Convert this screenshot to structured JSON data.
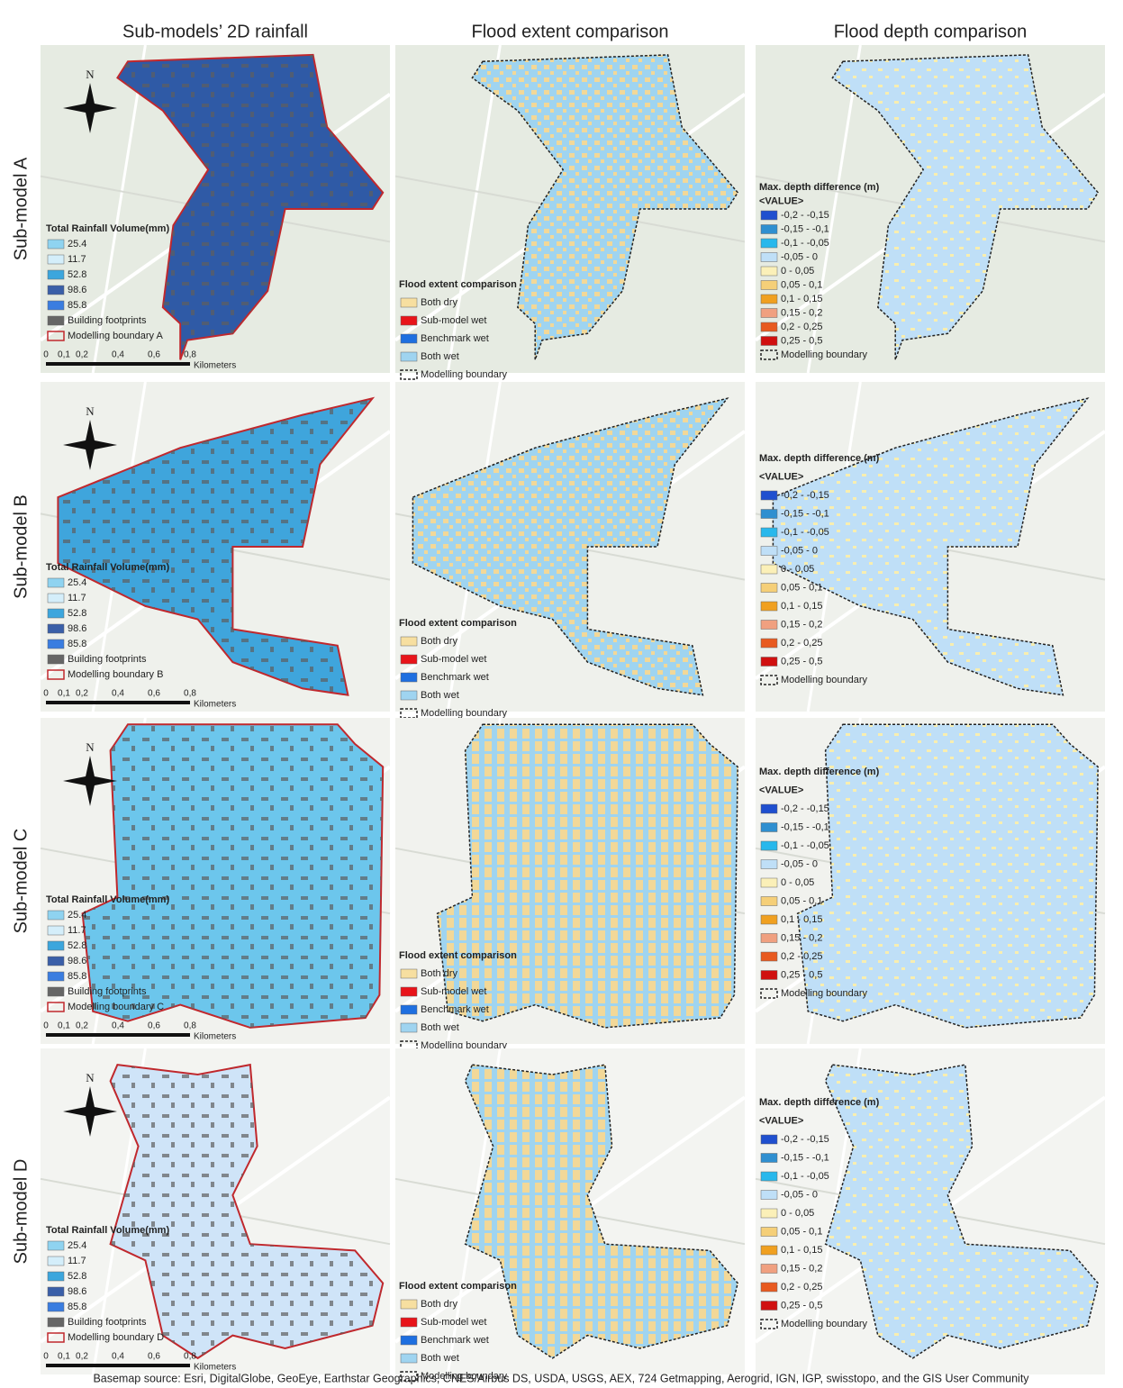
{
  "header": {
    "columns": [
      "Sub-models’ 2D rainfall",
      "Flood extent comparison",
      "Flood depth comparison"
    ]
  },
  "rows": [
    {
      "label": "Sub-model A",
      "rainfall_legend": {
        "title": "Total Rainfall Volume(mm)",
        "items": [
          {
            "label": "25.4",
            "color": "#8fd3f0"
          },
          {
            "label": "11.7",
            "color": "#d4eefa"
          },
          {
            "label": "52.8",
            "color": "#3ca6dd"
          },
          {
            "label": "98.6",
            "color": "#3a5fa8"
          },
          {
            "label": "85.8",
            "color": "#3a7de0"
          },
          {
            "label": "Building footprints",
            "color": "#666666"
          },
          {
            "label": "Modelling boundary A",
            "color": "#c0282d"
          }
        ]
      }
    },
    {
      "label": "Sub-model B",
      "rainfall_legend": {
        "title": "Total Rainfall Volume(mm)",
        "items": [
          {
            "label": "25.4",
            "color": "#8fd3f0"
          },
          {
            "label": "11.7",
            "color": "#d4eefa"
          },
          {
            "label": "52.8",
            "color": "#3ca6dd"
          },
          {
            "label": "98.6",
            "color": "#3a5fa8"
          },
          {
            "label": "85.8",
            "color": "#3a7de0"
          },
          {
            "label": "Building footprints",
            "color": "#666666"
          },
          {
            "label": "Modelling boundary B",
            "color": "#c0282d"
          }
        ]
      }
    },
    {
      "label": "Sub-model C",
      "rainfall_legend": {
        "title": "Total Rainfall Volume(mm)",
        "items": [
          {
            "label": "25.4",
            "color": "#8fd3f0"
          },
          {
            "label": "11.7",
            "color": "#d4eefa"
          },
          {
            "label": "52.8",
            "color": "#3ca6dd"
          },
          {
            "label": "98.6",
            "color": "#3a5fa8"
          },
          {
            "label": "85.8",
            "color": "#3a7de0"
          },
          {
            "label": "Building footprints",
            "color": "#666666"
          },
          {
            "label": "Modelling boundary C",
            "color": "#c0282d"
          }
        ]
      }
    },
    {
      "label": "Sub-model D",
      "rainfall_legend": {
        "title": "Total Rainfall Volume(mm)",
        "items": [
          {
            "label": "25.4",
            "color": "#8fd3f0"
          },
          {
            "label": "11.7",
            "color": "#d4eefa"
          },
          {
            "label": "52.8",
            "color": "#3ca6dd"
          },
          {
            "label": "98.6",
            "color": "#3a5fa8"
          },
          {
            "label": "85.8",
            "color": "#3a7de0"
          },
          {
            "label": "Building footprints",
            "color": "#666666"
          },
          {
            "label": "Modelling boundary D",
            "color": "#c0282d"
          }
        ]
      }
    }
  ],
  "north_label": "N",
  "scale_bar": {
    "ticks": [
      "0",
      "0,1",
      "0,2",
      "0,4",
      "0,6",
      "0,8"
    ],
    "unit": "Kilometers"
  },
  "extent_legend": {
    "title": "Flood extent comparison",
    "items": [
      {
        "label": "Both dry",
        "color": "#f7dfa0"
      },
      {
        "label": "Sub-model wet",
        "color": "#e8141a"
      },
      {
        "label": "Benchmark wet",
        "color": "#1e6fe0"
      },
      {
        "label": "Both wet",
        "color": "#9fd4f0"
      },
      {
        "label": "Modelling boundary",
        "color": "#222222"
      }
    ]
  },
  "depth_legend": {
    "title": "Max. depth difference (m)",
    "subtitle": "<VALUE>",
    "items": [
      {
        "label": "-0,2 - -0,15",
        "color": "#1f4fcf"
      },
      {
        "label": "-0,15 - -0,1",
        "color": "#2f8fd0"
      },
      {
        "label": "-0,1 - -0,05",
        "color": "#28b8ec"
      },
      {
        "label": "-0,05 - 0",
        "color": "#bfdff7"
      },
      {
        "label": "0 - 0,05",
        "color": "#fbf0b8"
      },
      {
        "label": "0,05 - 0,1",
        "color": "#f5cf78"
      },
      {
        "label": "0,1 - 0,15",
        "color": "#f0a020"
      },
      {
        "label": "0,15 - 0,2",
        "color": "#f0a080"
      },
      {
        "label": "0,2 - 0,25",
        "color": "#e85a20"
      },
      {
        "label": "0,25 - 0,5",
        "color": "#d01010"
      },
      {
        "label": "Modelling boundary",
        "color": "#222222"
      }
    ]
  },
  "footer": "Basemap source: Esri, DigitalGlobe, GeoEye, Earthstar Geographics, CNES/Airbus DS, USDA, USGS, AEX, 724 Getmapping, Aerogrid, IGN, IGP, swisstopo, and the GIS User Community"
}
